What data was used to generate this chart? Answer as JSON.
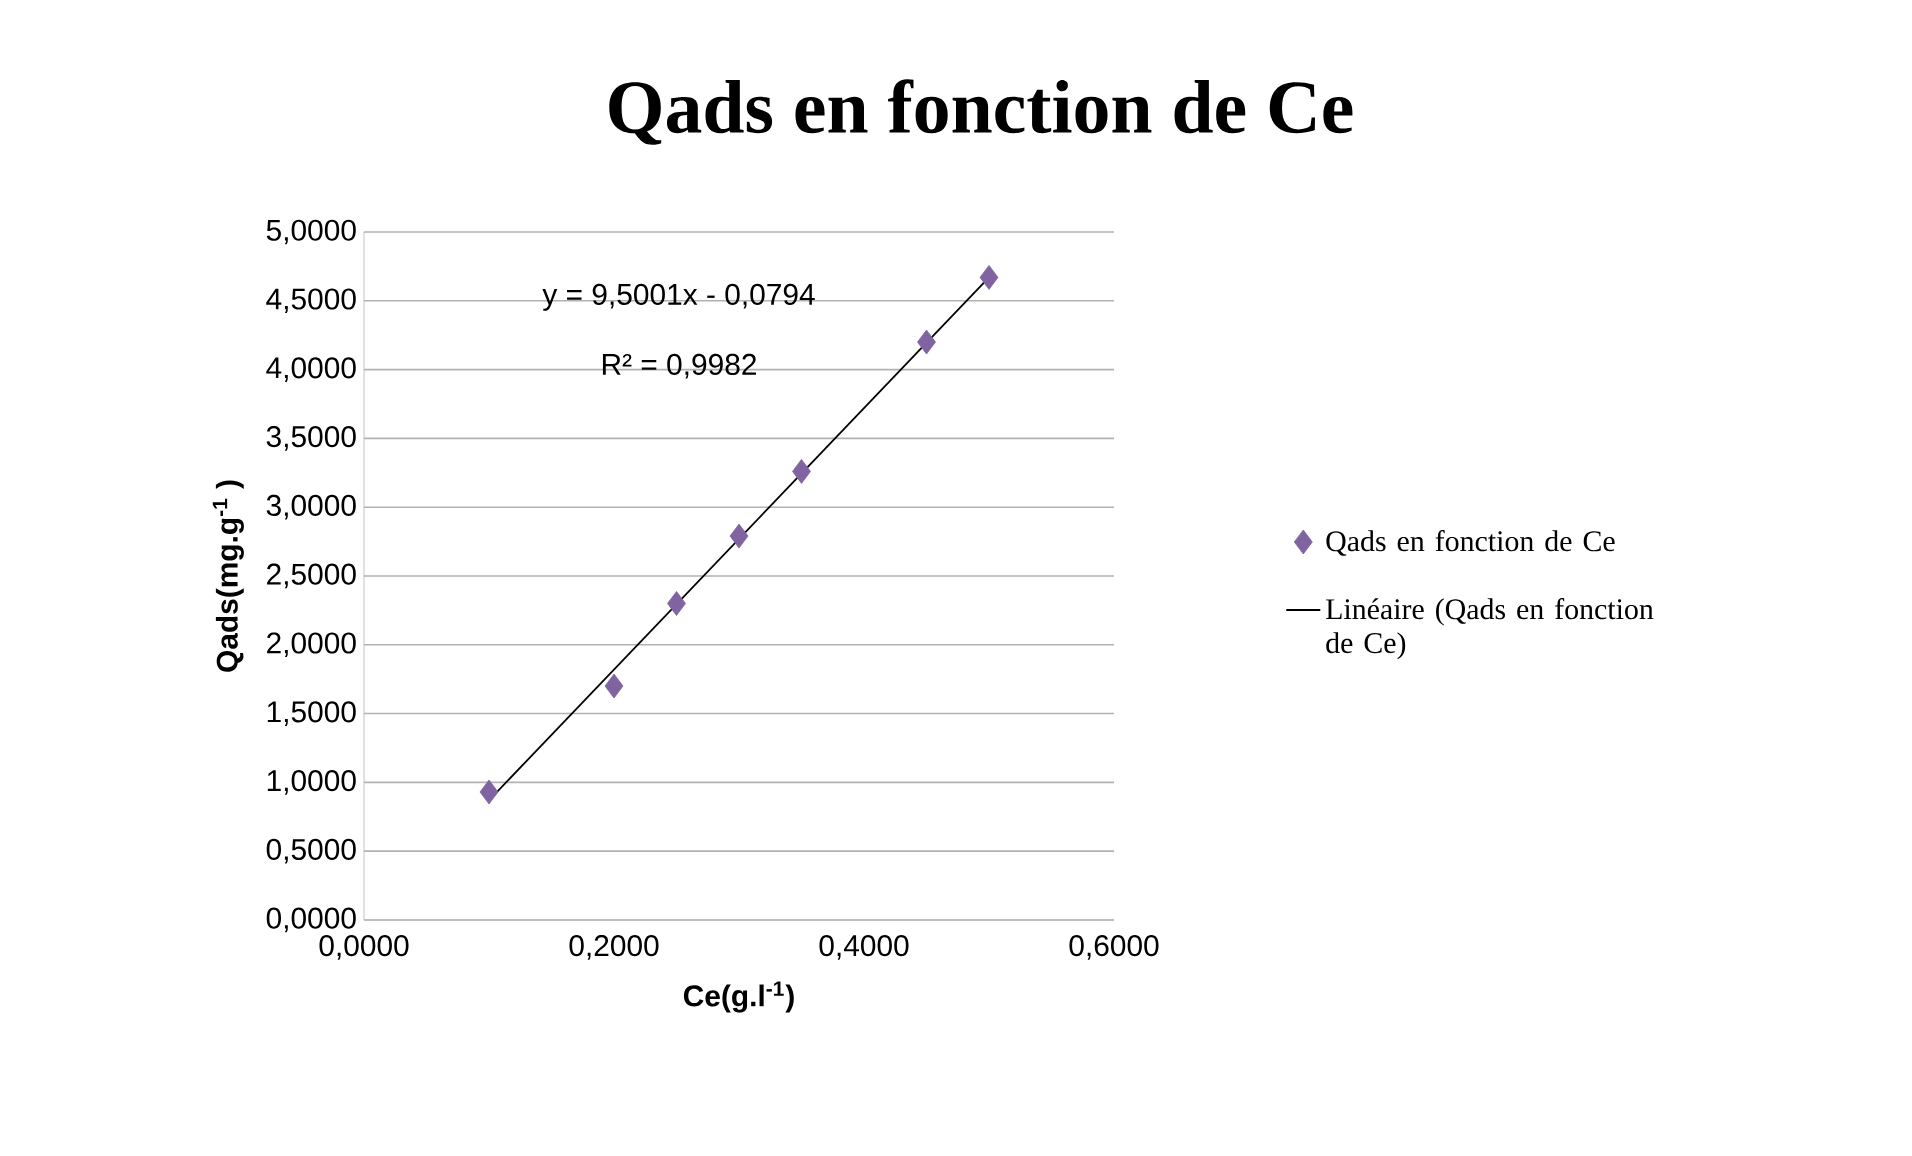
{
  "chart_data": {
    "type": "scatter",
    "title": "Qads en fonction de Ce",
    "xlabel": "Ce(g.l$^{-1}$)",
    "ylabel": "Qads(mg.g$^{-1}$ )",
    "annotations": [
      "y = 9,5001x - 0,0794",
      "R² = 0,9982"
    ],
    "xlim": [
      0,
      0.6
    ],
    "ylim": [
      0,
      5
    ],
    "xticks": [
      {
        "value": 0,
        "label": "0,0000"
      },
      {
        "value": 0.2,
        "label": "0,2000"
      },
      {
        "value": 0.4,
        "label": "0,4000"
      },
      {
        "value": 0.6,
        "label": "0,6000"
      }
    ],
    "yticks": [
      {
        "value": 0,
        "label": "0,0000"
      },
      {
        "value": 0.5,
        "label": "0,5000"
      },
      {
        "value": 1,
        "label": "1,0000"
      },
      {
        "value": 1.5,
        "label": "1,5000"
      },
      {
        "value": 2,
        "label": "2,0000"
      },
      {
        "value": 2.5,
        "label": "2,5000"
      },
      {
        "value": 3,
        "label": "3,0000"
      },
      {
        "value": 3.5,
        "label": "3,5000"
      },
      {
        "value": 4,
        "label": "4,0000"
      },
      {
        "value": 4.5,
        "label": "4,5000"
      },
      {
        "value": 5,
        "label": "5,0000"
      }
    ],
    "grid": "y",
    "legend": "right",
    "series": [
      {
        "name": "Qads en fonction de Ce",
        "marker": "diamond",
        "color": "#8064a2",
        "x": [
          0.1,
          0.2,
          0.25,
          0.3,
          0.35,
          0.45,
          0.5
        ],
        "values": [
          0.93,
          1.7,
          2.3,
          2.79,
          3.26,
          4.2,
          4.67
        ]
      },
      {
        "name": "Linéaire (Qads en fonction de Ce)",
        "type": "line",
        "marker": "none",
        "line_style": "solid",
        "color": "#000000",
        "x": [
          0.1,
          0.5
        ],
        "values": [
          0.87,
          4.67
        ]
      }
    ]
  }
}
